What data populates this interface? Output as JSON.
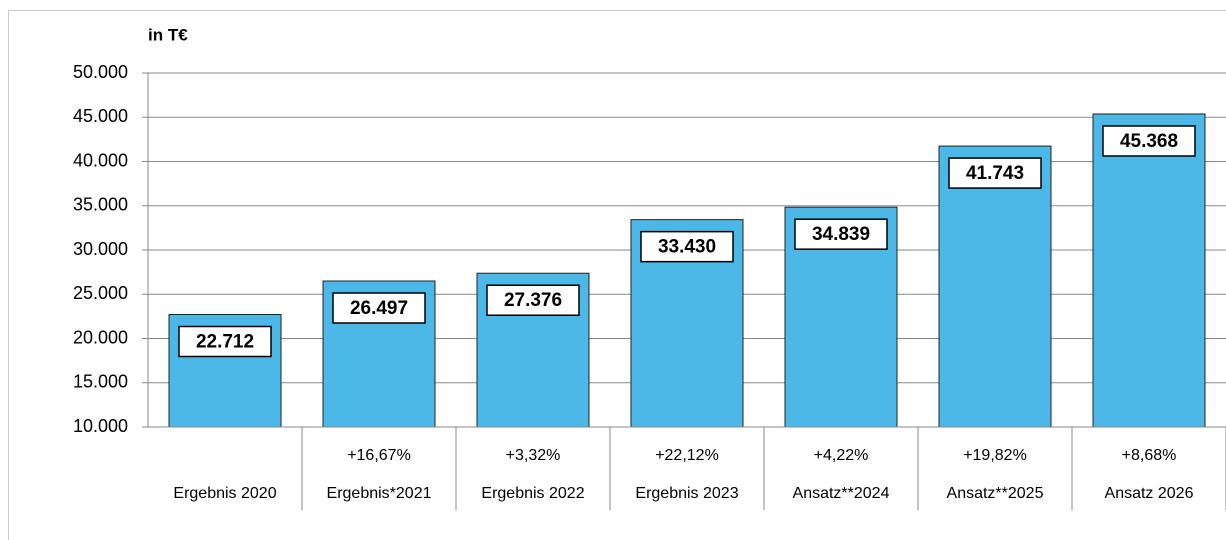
{
  "chart_data": {
    "type": "bar",
    "unit_label": "in T€",
    "categories": [
      "Ergebnis 2020",
      "Ergebnis*2021",
      "Ergebnis 2022",
      "Ergebnis 2023",
      "Ansatz**2024",
      "Ansatz**2025",
      "Ansatz 2026"
    ],
    "growth_labels": [
      null,
      "+16,67%",
      "+3,32%",
      "+22,12%",
      "+4,22%",
      "+19,82%",
      "+8,68%"
    ],
    "values": [
      22712,
      26497,
      27376,
      33430,
      34839,
      41743,
      45368
    ],
    "value_labels": [
      "22.712",
      "26.497",
      "27.376",
      "33.430",
      "34.839",
      "41.743",
      "45.368"
    ],
    "color": "#4cb8e8",
    "ylim": [
      10000,
      50000
    ],
    "yticks": [
      {
        "value": 10000,
        "label": "10.000"
      },
      {
        "value": 15000,
        "label": "15.000"
      },
      {
        "value": 20000,
        "label": "20.000"
      },
      {
        "value": 25000,
        "label": "25.000"
      },
      {
        "value": 30000,
        "label": "30.000"
      },
      {
        "value": 35000,
        "label": "35.000"
      },
      {
        "value": 40000,
        "label": "40.000"
      },
      {
        "value": 45000,
        "label": "45.000"
      },
      {
        "value": 50000,
        "label": "50.000"
      }
    ],
    "grid": true
  }
}
